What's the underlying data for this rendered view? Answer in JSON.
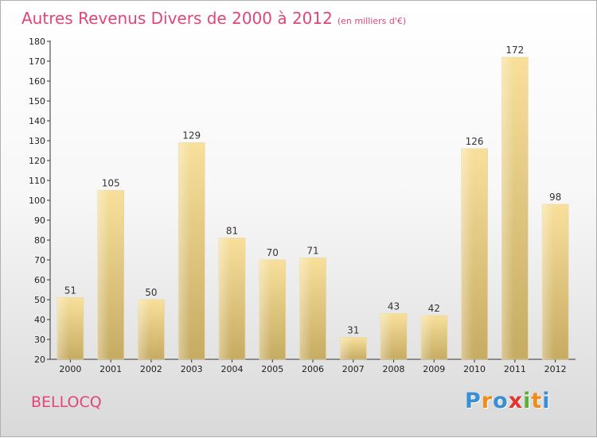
{
  "chart_data": {
    "type": "bar",
    "title": "Autres Revenus Divers de 2000 à 2012",
    "subtitle": "(en milliers d'€)",
    "categories": [
      "2000",
      "2001",
      "2002",
      "2003",
      "2004",
      "2005",
      "2006",
      "2007",
      "2008",
      "2009",
      "2010",
      "2011",
      "2012"
    ],
    "values": [
      51,
      105,
      50,
      129,
      81,
      70,
      71,
      31,
      43,
      42,
      126,
      172,
      98
    ],
    "ylim": [
      20,
      180
    ],
    "ytick_step": 10,
    "grid": false,
    "colors": {
      "bar_top": "#f8e09c",
      "bar_bottom": "#c6ab62",
      "title": "#e0457b"
    }
  },
  "footer": {
    "commune": "BELLOCQ",
    "logo": {
      "letters": [
        "P",
        "r",
        "o",
        "x",
        "i",
        "t",
        "i"
      ],
      "colors": [
        "#3a8fd4",
        "#f08c1a",
        "#3a8fd4",
        "#e2332f",
        "#58b23a",
        "#f08c1a",
        "#3a8fd4"
      ]
    }
  }
}
